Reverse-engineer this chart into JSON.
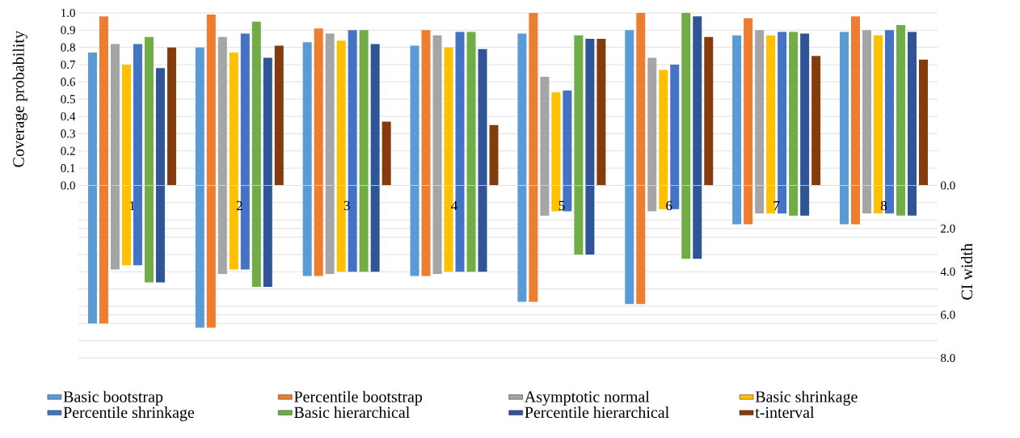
{
  "chart_data": [
    {
      "type": "bar",
      "ylabel": "Coverage probability",
      "categories": [
        "1",
        "2",
        "3",
        "4",
        "5",
        "6",
        "7",
        "8"
      ],
      "ylim": [
        0,
        1
      ],
      "yticks": [
        {
          "value": 0,
          "label": "0.0"
        },
        0.1,
        0.2,
        0.3,
        0.4,
        0.5,
        0.6,
        0.7,
        0.8,
        0.9,
        {
          "value": 1,
          "label": "1.0"
        }
      ],
      "grid": "y",
      "legend": "bottom",
      "tick_labels": "y",
      "series": [
        {
          "name": "Basic bootstrap",
          "color": "#5b9bd5",
          "values": [
            0.77,
            0.8,
            0.83,
            0.81,
            0.88,
            0.9,
            0.87,
            0.89
          ]
        },
        {
          "name": "Percentile bootstrap",
          "color": "#ed7d31",
          "values": [
            0.98,
            0.99,
            0.91,
            0.9,
            1.0,
            1.0,
            0.97,
            0.98
          ]
        },
        {
          "name": "Asymptotic normal",
          "color": "#a5a5a5",
          "values": [
            0.82,
            0.86,
            0.88,
            0.87,
            0.63,
            0.74,
            0.9,
            0.9
          ]
        },
        {
          "name": "Basic shrinkage",
          "color": "#ffc000",
          "values": [
            0.7,
            0.77,
            0.84,
            0.8,
            0.54,
            0.67,
            0.87,
            0.87
          ]
        },
        {
          "name": "Percentile shrinkage",
          "color": "#4472c4",
          "values": [
            0.82,
            0.88,
            0.9,
            0.89,
            0.55,
            0.7,
            0.89,
            0.9
          ]
        },
        {
          "name": "Basic hierarchical",
          "color": "#70ad47",
          "values": [
            0.86,
            0.95,
            0.9,
            0.89,
            0.87,
            1.0,
            0.89,
            0.93
          ]
        },
        {
          "name": "Percentile hierarchical",
          "color": "#2f5597",
          "values": [
            0.68,
            0.74,
            0.82,
            0.79,
            0.85,
            0.98,
            0.88,
            0.89
          ]
        },
        {
          "name": "t-interval",
          "color": "#843c0c",
          "values": [
            0.8,
            0.81,
            0.37,
            0.35,
            0.85,
            0.86,
            0.75,
            0.73
          ]
        }
      ]
    },
    {
      "type": "bar",
      "y2label": "CI width",
      "categories": [
        "1",
        "2",
        "3",
        "4",
        "5",
        "6",
        "7",
        "8"
      ],
      "y2lim": [
        8,
        0
      ],
      "y2ticks": [
        {
          "value": 0,
          "label": "0.0"
        },
        {
          "value": 0.8,
          "label": null
        },
        {
          "value": 1.6,
          "label": null
        },
        {
          "value": 2,
          "label": "2.0"
        },
        {
          "value": 2.4,
          "label": null
        },
        {
          "value": 3.2,
          "label": null
        },
        {
          "value": 4,
          "label": "4.0"
        },
        {
          "value": 4.8,
          "label": null
        },
        {
          "value": 5.6,
          "label": null
        },
        {
          "value": 6,
          "label": "6.0"
        },
        {
          "value": 6.4,
          "label": null
        },
        {
          "value": 7.2,
          "label": null
        },
        {
          "value": 8,
          "label": "8.0"
        }
      ],
      "grid": true,
      "series": [
        {
          "color": "#5b9bd5",
          "axis": "y2",
          "values": [
            6.4,
            6.6,
            4.2,
            4.2,
            5.4,
            5.5,
            1.8,
            1.8
          ]
        },
        {
          "color": "#ed7d31",
          "axis": "y2",
          "values": [
            6.4,
            6.6,
            4.2,
            4.2,
            5.4,
            5.5,
            1.8,
            1.8
          ]
        },
        {
          "color": "#a5a5a5",
          "axis": "y2",
          "values": [
            3.9,
            4.1,
            4.1,
            4.1,
            1.4,
            1.2,
            1.3,
            1.3
          ]
        },
        {
          "color": "#ffc000",
          "axis": "y2",
          "values": [
            3.7,
            3.9,
            4.0,
            4.0,
            1.2,
            1.1,
            1.3,
            1.3
          ]
        },
        {
          "color": "#4472c4",
          "axis": "y2",
          "values": [
            3.7,
            3.9,
            4.0,
            4.0,
            1.2,
            1.1,
            1.3,
            1.3
          ]
        },
        {
          "color": "#70ad47",
          "axis": "y2",
          "values": [
            4.5,
            4.7,
            4.0,
            4.0,
            3.2,
            3.4,
            1.4,
            1.4
          ]
        },
        {
          "color": "#2f5597",
          "axis": "y2",
          "values": [
            4.5,
            4.7,
            4.0,
            4.0,
            3.2,
            3.4,
            1.4,
            1.4
          ]
        }
      ]
    }
  ]
}
